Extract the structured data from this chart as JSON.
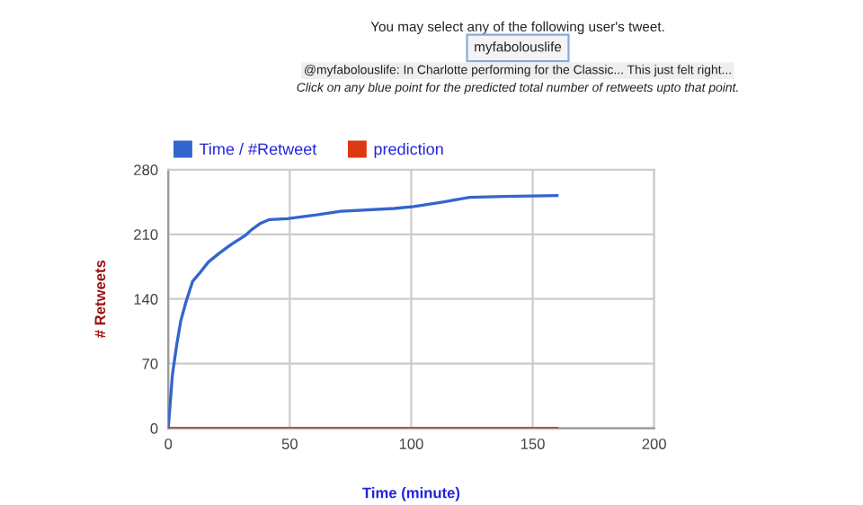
{
  "chart_data": {
    "type": "line",
    "xlabel": "Time (minute)",
    "ylabel": "# Retweets",
    "annotations": [
      "You may select any of the following user's tweet.",
      "myfabolouslife",
      "@myfabolouslife: In Charlotte performing for the Classic... This just felt right...",
      "Click on any blue point for the predicted total number of retweets upto that point."
    ],
    "series": [
      {
        "name": "Time / #Retweet",
        "color": "#3366cc",
        "x": [
          0,
          1.7,
          3.5,
          5.2,
          7.2,
          10,
          12.6,
          16.5,
          20.7,
          26.4,
          31.8,
          34.3,
          38,
          41.7,
          49,
          61,
          71,
          93,
          101,
          113,
          124,
          138,
          160
        ],
        "values": [
          0,
          58,
          91,
          117,
          136,
          159,
          167,
          180,
          189,
          200,
          209,
          215,
          222,
          226,
          227,
          231,
          235,
          238,
          240,
          245,
          250,
          251,
          252
        ]
      },
      {
        "name": "prediction",
        "color": "#dc3912",
        "x": [
          0,
          160
        ],
        "values": [
          0,
          0
        ]
      }
    ],
    "xlim": [
      0,
      200
    ],
    "xticks": [
      0,
      50,
      100,
      150,
      200
    ],
    "ylim": [
      0,
      280
    ],
    "yticks": [
      0,
      70,
      140,
      210,
      280
    ],
    "grid": true,
    "legend": "top left",
    "marker": "none",
    "line_style": "solid"
  }
}
